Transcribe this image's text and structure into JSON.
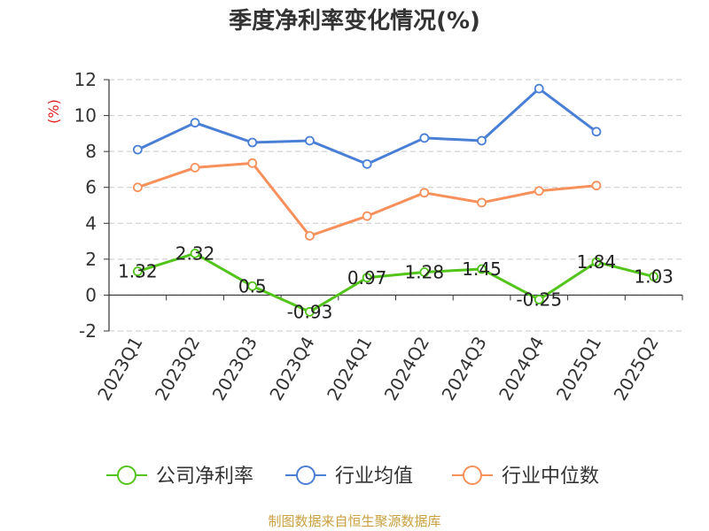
{
  "chart_data": {
    "type": "line",
    "title": "季度净利率变化情况(%)",
    "ylabel": "(%)",
    "ylim": [
      -2,
      12
    ],
    "yticks": [
      -2,
      0,
      2,
      4,
      6,
      8,
      10,
      12
    ],
    "grid": true,
    "categories": [
      "2023Q1",
      "2023Q2",
      "2023Q3",
      "2023Q4",
      "2024Q1",
      "2024Q2",
      "2024Q3",
      "2024Q4",
      "2025Q1",
      "2025Q2"
    ],
    "series": [
      {
        "name": "公司净利率",
        "color": "#52c41a",
        "values": [
          1.32,
          2.32,
          0.5,
          -0.93,
          0.97,
          1.28,
          1.45,
          -0.25,
          1.84,
          1.03
        ],
        "data_labels": [
          "1.32",
          "2.32",
          "0.5",
          "-0.93",
          "0.97",
          "1.28",
          "1.45",
          "-0.25",
          "1.84",
          "1.03"
        ]
      },
      {
        "name": "行业均值",
        "color": "#4a7fd6",
        "values": [
          8.1,
          9.6,
          8.5,
          8.6,
          7.3,
          8.75,
          8.6,
          11.5,
          9.1,
          null
        ]
      },
      {
        "name": "行业中位数",
        "color": "#f7905b",
        "values": [
          6.0,
          7.1,
          7.35,
          3.3,
          4.4,
          5.7,
          5.15,
          5.8,
          6.1,
          null
        ]
      }
    ],
    "legend_position": "bottom",
    "source": "制图数据来自恒生聚源数据库"
  }
}
